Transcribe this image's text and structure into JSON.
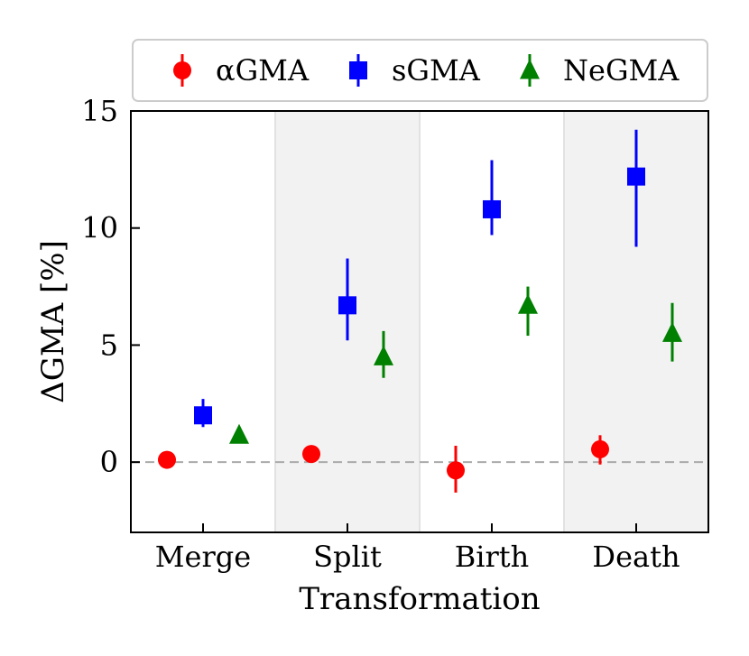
{
  "chart_data": {
    "type": "scatter",
    "title": "",
    "xlabel": "Transformation",
    "ylabel": "ΔGMA [%]",
    "categories": [
      "Merge",
      "Split",
      "Birth",
      "Death"
    ],
    "ylim": [
      -3,
      15
    ],
    "yticks": [
      0,
      5,
      10,
      15
    ],
    "reference_line": 0,
    "shaded_categories": [
      "Split",
      "Death"
    ],
    "legend_position": "top (above plot)",
    "series": [
      {
        "name": "αGMA",
        "marker": "circle",
        "color": "#ff0000",
        "values": [
          0.1,
          0.35,
          -0.35,
          0.55
        ],
        "err_low": [
          0.1,
          0.35,
          -1.3,
          -0.1
        ],
        "err_high": [
          0.1,
          0.35,
          0.7,
          1.15
        ]
      },
      {
        "name": "sGMA",
        "marker": "square",
        "color": "#0000ff",
        "values": [
          2.0,
          6.7,
          10.8,
          12.2
        ],
        "err_low": [
          1.5,
          5.2,
          9.7,
          9.2
        ],
        "err_high": [
          2.7,
          8.7,
          12.9,
          14.2
        ]
      },
      {
        "name": "NeGMA",
        "marker": "triangle",
        "color": "#008000",
        "values": [
          1.15,
          4.5,
          6.7,
          5.5
        ],
        "err_low": [
          0.8,
          3.6,
          5.4,
          4.3
        ],
        "err_high": [
          1.2,
          5.6,
          7.5,
          6.8
        ]
      }
    ]
  }
}
